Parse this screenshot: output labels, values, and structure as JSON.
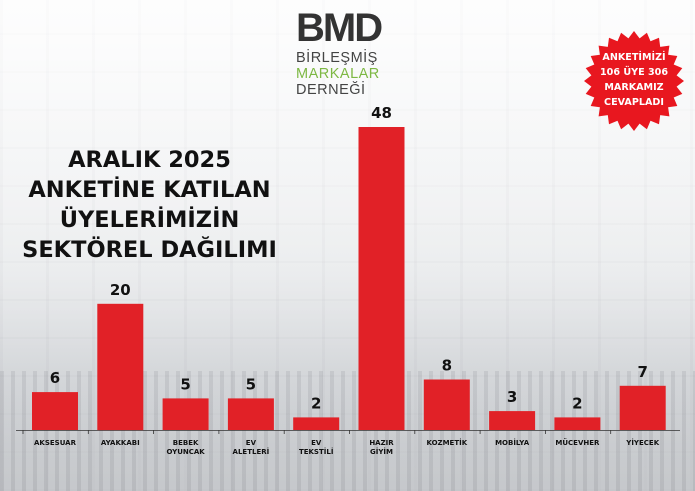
{
  "logo": {
    "mark": "BMD",
    "line1": "BİRLEŞMİŞ",
    "line2": "MARKALAR",
    "line3": "DERNEĞİ"
  },
  "title_lines": [
    "ARALIK 2025",
    "ANKETİNE KATILAN",
    "ÜYELERİMİZİN",
    "SEKTÖREL DAĞILIMI"
  ],
  "badge": {
    "lines": [
      "ANKETİMİZİ",
      "106 ÜYE 306",
      "MARKAMIZ",
      "CEVAPLADI"
    ],
    "color": "#e8171f"
  },
  "colors": {
    "bar": "#e12127",
    "text": "#111111",
    "logo_green": "#7db843"
  },
  "chart_data": {
    "type": "bar",
    "title": "ARALIK 2025 ANKETİNE KATILAN ÜYELERİMİZİN SEKTÖREL DAĞILIMI",
    "categories": [
      [
        "AKSESUAR"
      ],
      [
        "AYAKKABI"
      ],
      [
        "BEBEK",
        "OYUNCAK"
      ],
      [
        "EV",
        "ALETLERİ"
      ],
      [
        "EV",
        "TEKSTİLİ"
      ],
      [
        "HAZIR",
        "GİYİM"
      ],
      [
        "KOZMETİK"
      ],
      [
        "MOBİLYA"
      ],
      [
        "MÜCEVHER"
      ],
      [
        "YİYECEK"
      ]
    ],
    "values": [
      6,
      20,
      5,
      5,
      2,
      48,
      8,
      3,
      2,
      7
    ],
    "xlabel": "",
    "ylabel": "",
    "ylim": [
      0,
      48
    ],
    "grid": false,
    "data_labels": true
  }
}
